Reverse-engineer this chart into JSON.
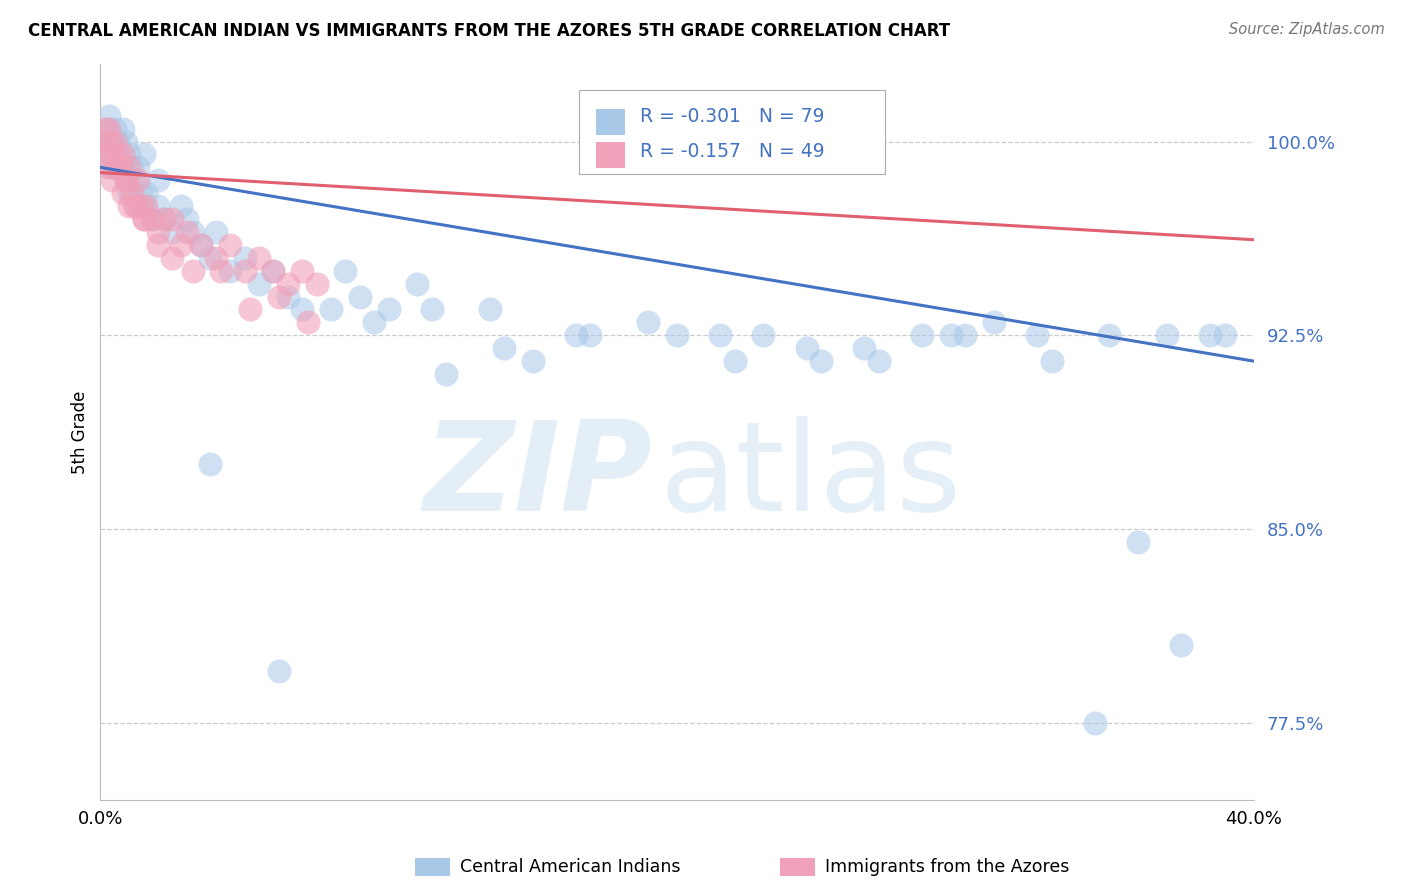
{
  "title": "CENTRAL AMERICAN INDIAN VS IMMIGRANTS FROM THE AZORES 5TH GRADE CORRELATION CHART",
  "source": "Source: ZipAtlas.com",
  "ylabel": "5th Grade",
  "xlim": [
    0.0,
    40.0
  ],
  "ylim": [
    74.5,
    103.0
  ],
  "yticks": [
    77.5,
    85.0,
    92.5,
    100.0
  ],
  "ytick_labels": [
    "77.5%",
    "85.0%",
    "92.5%",
    "100.0%"
  ],
  "xtick_left": "0.0%",
  "xtick_right": "40.0%",
  "blue_dot_color": "#A8C8E8",
  "pink_dot_color": "#F0A0B8",
  "blue_line_color": "#4472C4",
  "pink_line_color": "#E06070",
  "tick_label_color": "#4472C4",
  "R_blue": -0.301,
  "N_blue": 79,
  "R_pink": -0.157,
  "N_pink": 49,
  "legend_label_blue": "Central American Indians",
  "legend_label_pink": "Immigrants from the Azores",
  "blue_line_x": [
    0.0,
    40.0
  ],
  "blue_line_y": [
    99.0,
    91.5
  ],
  "pink_line_x": [
    0.0,
    40.0
  ],
  "pink_line_y": [
    98.8,
    96.2
  ],
  "blue_x": [
    0.15,
    0.2,
    0.25,
    0.3,
    0.3,
    0.35,
    0.4,
    0.5,
    0.5,
    0.6,
    0.6,
    0.7,
    0.8,
    0.8,
    0.9,
    0.9,
    1.0,
    1.0,
    1.1,
    1.2,
    1.3,
    1.4,
    1.5,
    1.5,
    1.6,
    1.8,
    2.0,
    2.0,
    2.2,
    2.5,
    2.8,
    3.0,
    3.2,
    3.5,
    3.8,
    4.0,
    4.5,
    5.0,
    5.5,
    6.0,
    6.5,
    7.0,
    8.0,
    9.0,
    10.0,
    11.0,
    12.0,
    13.5,
    15.0,
    17.0,
    19.0,
    20.0,
    21.5,
    23.0,
    25.0,
    27.0,
    28.5,
    30.0,
    31.0,
    33.0,
    34.5,
    36.0,
    37.5,
    38.5,
    8.5,
    9.5,
    11.5,
    14.0,
    16.5,
    22.0,
    24.5,
    26.5,
    29.5,
    32.5,
    35.0,
    37.0,
    39.0,
    3.8,
    6.2
  ],
  "blue_y": [
    100.0,
    99.5,
    100.5,
    101.0,
    99.0,
    100.0,
    99.5,
    100.5,
    99.0,
    100.0,
    99.5,
    99.0,
    100.5,
    99.0,
    98.5,
    100.0,
    99.5,
    98.0,
    99.0,
    98.5,
    99.0,
    98.0,
    99.5,
    97.5,
    98.0,
    97.0,
    97.5,
    98.5,
    97.0,
    96.5,
    97.5,
    97.0,
    96.5,
    96.0,
    95.5,
    96.5,
    95.0,
    95.5,
    94.5,
    95.0,
    94.0,
    93.5,
    93.5,
    94.0,
    93.5,
    94.5,
    91.0,
    93.5,
    91.5,
    92.5,
    93.0,
    92.5,
    92.5,
    92.5,
    91.5,
    91.5,
    92.5,
    92.5,
    93.0,
    91.5,
    77.5,
    84.5,
    80.5,
    92.5,
    95.0,
    93.0,
    93.5,
    92.0,
    92.5,
    91.5,
    92.0,
    92.0,
    92.5,
    92.5,
    92.5,
    92.5,
    92.5,
    87.5,
    79.5
  ],
  "pink_x": [
    0.15,
    0.2,
    0.25,
    0.3,
    0.3,
    0.35,
    0.4,
    0.4,
    0.5,
    0.5,
    0.6,
    0.7,
    0.8,
    0.8,
    0.9,
    1.0,
    1.0,
    1.1,
    1.2,
    1.3,
    1.4,
    1.5,
    1.6,
    1.8,
    2.0,
    2.2,
    2.5,
    2.8,
    3.0,
    3.5,
    4.0,
    4.5,
    5.0,
    5.5,
    6.0,
    6.5,
    7.0,
    7.5,
    0.6,
    0.9,
    1.2,
    1.5,
    2.0,
    2.5,
    3.2,
    4.2,
    5.2,
    6.2,
    7.2
  ],
  "pink_y": [
    100.5,
    100.0,
    99.5,
    100.5,
    99.0,
    100.0,
    99.5,
    98.5,
    100.0,
    99.0,
    99.5,
    99.0,
    99.5,
    98.0,
    98.5,
    99.0,
    97.5,
    98.0,
    97.5,
    98.5,
    97.5,
    97.0,
    97.5,
    97.0,
    96.5,
    97.0,
    97.0,
    96.0,
    96.5,
    96.0,
    95.5,
    96.0,
    95.0,
    95.5,
    95.0,
    94.5,
    95.0,
    94.5,
    99.0,
    98.5,
    97.5,
    97.0,
    96.0,
    95.5,
    95.0,
    95.0,
    93.5,
    94.0,
    93.0
  ]
}
